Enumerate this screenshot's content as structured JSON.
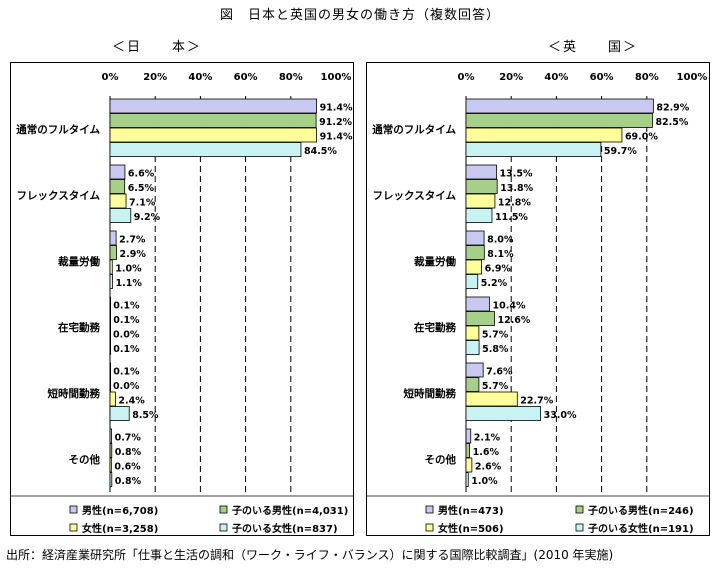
{
  "figure_title": "図　日本と英国の男女の働き方（複数回答）",
  "source_note": "出所：経済産業研究所「仕事と生活の調和（ワーク・ライフ・バランス）に関する国際比較調査」(2010 年実施)",
  "colors": {
    "male": "#c8c8f0",
    "male_with_children": "#a6d08a",
    "female": "#ffff99",
    "female_with_children": "#c9f3f3"
  },
  "chart_data": [
    {
      "type": "bar",
      "orientation": "horizontal",
      "title": "＜日　　本＞",
      "xlim": [
        0,
        100
      ],
      "tick_labels": [
        "0%",
        "20%",
        "40%",
        "60%",
        "80%",
        "100%"
      ],
      "categories": [
        "通常のフルタイム",
        "フレックスタイム",
        "裁量労働",
        "在宅勤務",
        "短時間勤務",
        "その他"
      ],
      "series": [
        {
          "name": "男性(n=6,708)",
          "values": [
            91.4,
            6.6,
            2.7,
            0.1,
            0.1,
            0.7
          ],
          "labels": [
            "91.4%",
            "6.6%",
            "2.7%",
            "0.1%",
            "0.1%",
            "0.7%"
          ]
        },
        {
          "name": "子のいる男性(n=4,031)",
          "values": [
            91.2,
            6.5,
            2.9,
            0.1,
            0.0,
            0.8
          ],
          "labels": [
            "91.2%",
            "6.5%",
            "2.9%",
            "0.1%",
            "0.0%",
            "0.8%"
          ]
        },
        {
          "name": "女性(n=3,258)",
          "values": [
            91.4,
            7.1,
            1.0,
            0.0,
            2.4,
            0.6
          ],
          "labels": [
            "91.4%",
            "7.1%",
            "1.0%",
            "0.0%",
            "2.4%",
            "0.6%"
          ]
        },
        {
          "name": "子のいる女性(n=837)",
          "values": [
            84.5,
            9.2,
            1.1,
            0.1,
            8.5,
            0.8
          ],
          "labels": [
            "84.5%",
            "9.2%",
            "1.1%",
            "0.1%",
            "8.5%",
            "0.8%"
          ]
        }
      ],
      "grid": true,
      "legend": "bottom"
    },
    {
      "type": "bar",
      "orientation": "horizontal",
      "title": "＜英　　国＞",
      "xlim": [
        0,
        100
      ],
      "tick_labels": [
        "0%",
        "20%",
        "40%",
        "60%",
        "80%",
        "100%"
      ],
      "categories": [
        "通常のフルタイム",
        "フレックスタイム",
        "裁量労働",
        "在宅勤務",
        "短時間勤務",
        "その他"
      ],
      "series": [
        {
          "name": "男性(n=473)",
          "values": [
            82.9,
            13.5,
            8.0,
            10.4,
            7.6,
            2.1
          ],
          "labels": [
            "82.9%",
            "13.5%",
            "8.0%",
            "10.4%",
            "7.6%",
            "2.1%"
          ]
        },
        {
          "name": "子のいる男性(n=246)",
          "values": [
            82.5,
            13.8,
            8.1,
            12.6,
            5.7,
            1.6
          ],
          "labels": [
            "82.5%",
            "13.8%",
            "8.1%",
            "12.6%",
            "5.7%",
            "1.6%"
          ]
        },
        {
          "name": "女性(n=506)",
          "values": [
            69.0,
            12.8,
            6.9,
            5.7,
            22.7,
            2.6
          ],
          "labels": [
            "69.0%",
            "12.8%",
            "6.9%",
            "5.7%",
            "22.7%",
            "2.6%"
          ]
        },
        {
          "name": "子のいる女性(n=191)",
          "values": [
            59.7,
            11.5,
            5.2,
            5.8,
            33.0,
            1.0
          ],
          "labels": [
            "59.7%",
            "11.5%",
            "5.2%",
            "5.8%",
            "33.0%",
            "1.0%"
          ]
        }
      ],
      "grid": true,
      "legend": "bottom"
    }
  ]
}
